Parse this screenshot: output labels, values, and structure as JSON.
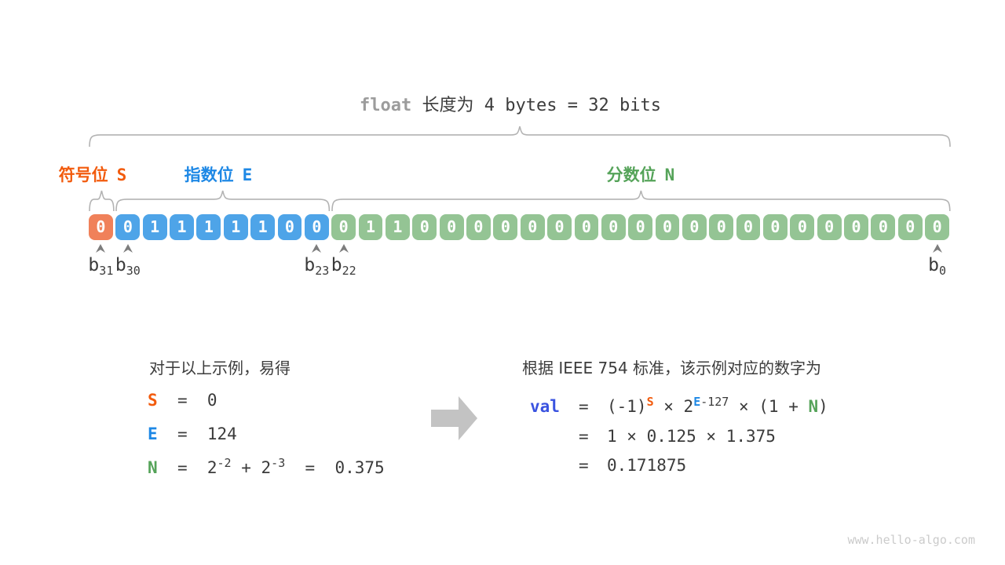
{
  "title": {
    "keyword": "float",
    "text": " 长度为 4 bytes = 32 bits"
  },
  "colors": {
    "sign": "#F25B0D",
    "exponent": "#1E88E5",
    "fraction": "#55A359",
    "sign_cell": "#F0815A",
    "exponent_cell": "#4EA4E8",
    "fraction_cell": "#94C494",
    "val": "#3A53E0",
    "text": "#3B3B3B",
    "brace": "#B3B3B3",
    "marker": "#7D7D7D",
    "arrow": "#C3C3C3"
  },
  "fields": [
    {
      "id": "sign",
      "label": "符号位",
      "symbol": "S",
      "bits": [
        "0"
      ]
    },
    {
      "id": "exponent",
      "label": "指数位",
      "symbol": "E",
      "bits": [
        "0",
        "1",
        "1",
        "1",
        "1",
        "1",
        "0",
        "0"
      ]
    },
    {
      "id": "fraction",
      "label": "分数位",
      "symbol": "N",
      "bits": [
        "0",
        "1",
        "1",
        "0",
        "0",
        "0",
        "0",
        "0",
        "0",
        "0",
        "0",
        "0",
        "0",
        "0",
        "0",
        "0",
        "0",
        "0",
        "0",
        "0",
        "0",
        "0",
        "0"
      ]
    }
  ],
  "marker_base": "b",
  "bit_markers": [
    {
      "bit": "31",
      "cell": 0
    },
    {
      "bit": "30",
      "cell": 1
    },
    {
      "bit": "23",
      "cell": 8
    },
    {
      "bit": "22",
      "cell": 9
    },
    {
      "bit": "0",
      "cell": 31
    }
  ],
  "example": {
    "intro": "对于以上示例，易得",
    "lines": [
      {
        "sym": "S",
        "c": "sign",
        "eq": "  =  ",
        "segments": [
          {
            "t": "0"
          }
        ]
      },
      {
        "sym": "E",
        "c": "exponent",
        "eq": "  =  ",
        "segments": [
          {
            "t": "124"
          }
        ]
      },
      {
        "sym": "N",
        "c": "fraction",
        "eq": "  =  ",
        "segments": [
          {
            "t": "2"
          },
          {
            "t": "-2",
            "sup": true
          },
          {
            "t": " + 2"
          },
          {
            "t": "-3",
            "sup": true
          },
          {
            "t": "  =  0.375"
          }
        ]
      }
    ]
  },
  "result": {
    "intro": "根据 IEEE 754 标准，该示例对应的数字为",
    "lhs": "val",
    "lines": [
      {
        "eq": "=",
        "segments": [
          {
            "t": "(-1)"
          },
          {
            "t": "S",
            "sup": true,
            "c": "sign"
          },
          {
            "t": " × 2"
          },
          {
            "t": "E",
            "sup": true,
            "c": "exponent"
          },
          {
            "t": "-127",
            "sup": true
          },
          {
            "t": " × (1 + "
          },
          {
            "t": "N",
            "c": "fraction"
          },
          {
            "t": ")"
          }
        ]
      },
      {
        "eq": "=",
        "segments": [
          {
            "t": "1 × 0.125 × 1.375"
          }
        ]
      },
      {
        "eq": "=",
        "segments": [
          {
            "t": "0.171875"
          }
        ]
      }
    ]
  },
  "site": {
    "watermark": "www.hello-algo.com"
  }
}
